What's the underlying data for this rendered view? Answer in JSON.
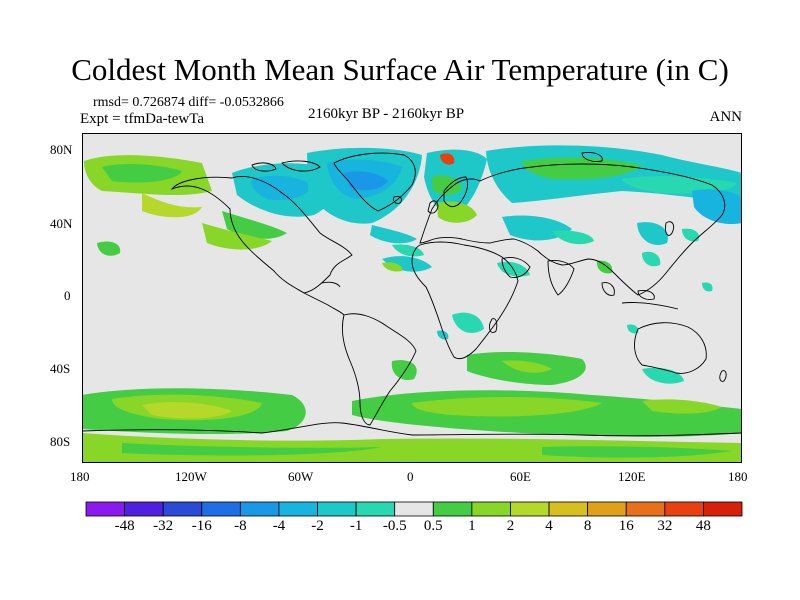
{
  "title": "Coldest Month Mean Surface Air Temperature (in C)",
  "stats": "rmsd= 0.726874 diff= -0.0532866",
  "experiment": "Expt = tfmDa-tewTa",
  "period": "2160kyr BP - 2160kyr BP",
  "season": "ANN",
  "lat_labels": [
    "80N",
    "40N",
    "0",
    "40S",
    "80S"
  ],
  "lon_labels": [
    "180",
    "120W",
    "60W",
    "0",
    "60E",
    "120E",
    "180"
  ],
  "colorbar": {
    "labels": [
      "-48",
      "-32",
      "-16",
      "-8",
      "-4",
      "-2",
      "-1",
      "-0.5",
      "0.5",
      "1",
      "2",
      "4",
      "8",
      "16",
      "32",
      "48"
    ],
    "colors": [
      "#8a1bf0",
      "#5020e0",
      "#2a4ad8",
      "#1e6ee8",
      "#1a98e8",
      "#18b4e0",
      "#1ec8c8",
      "#28d8b0",
      "#e6e6e6",
      "#44cc44",
      "#88d628",
      "#b6d82a",
      "#d6c020",
      "#e0a018",
      "#e87018",
      "#e84010",
      "#d82008"
    ]
  },
  "map": {
    "background_color": "#e6e6e6",
    "coastline_color": "#000000"
  }
}
